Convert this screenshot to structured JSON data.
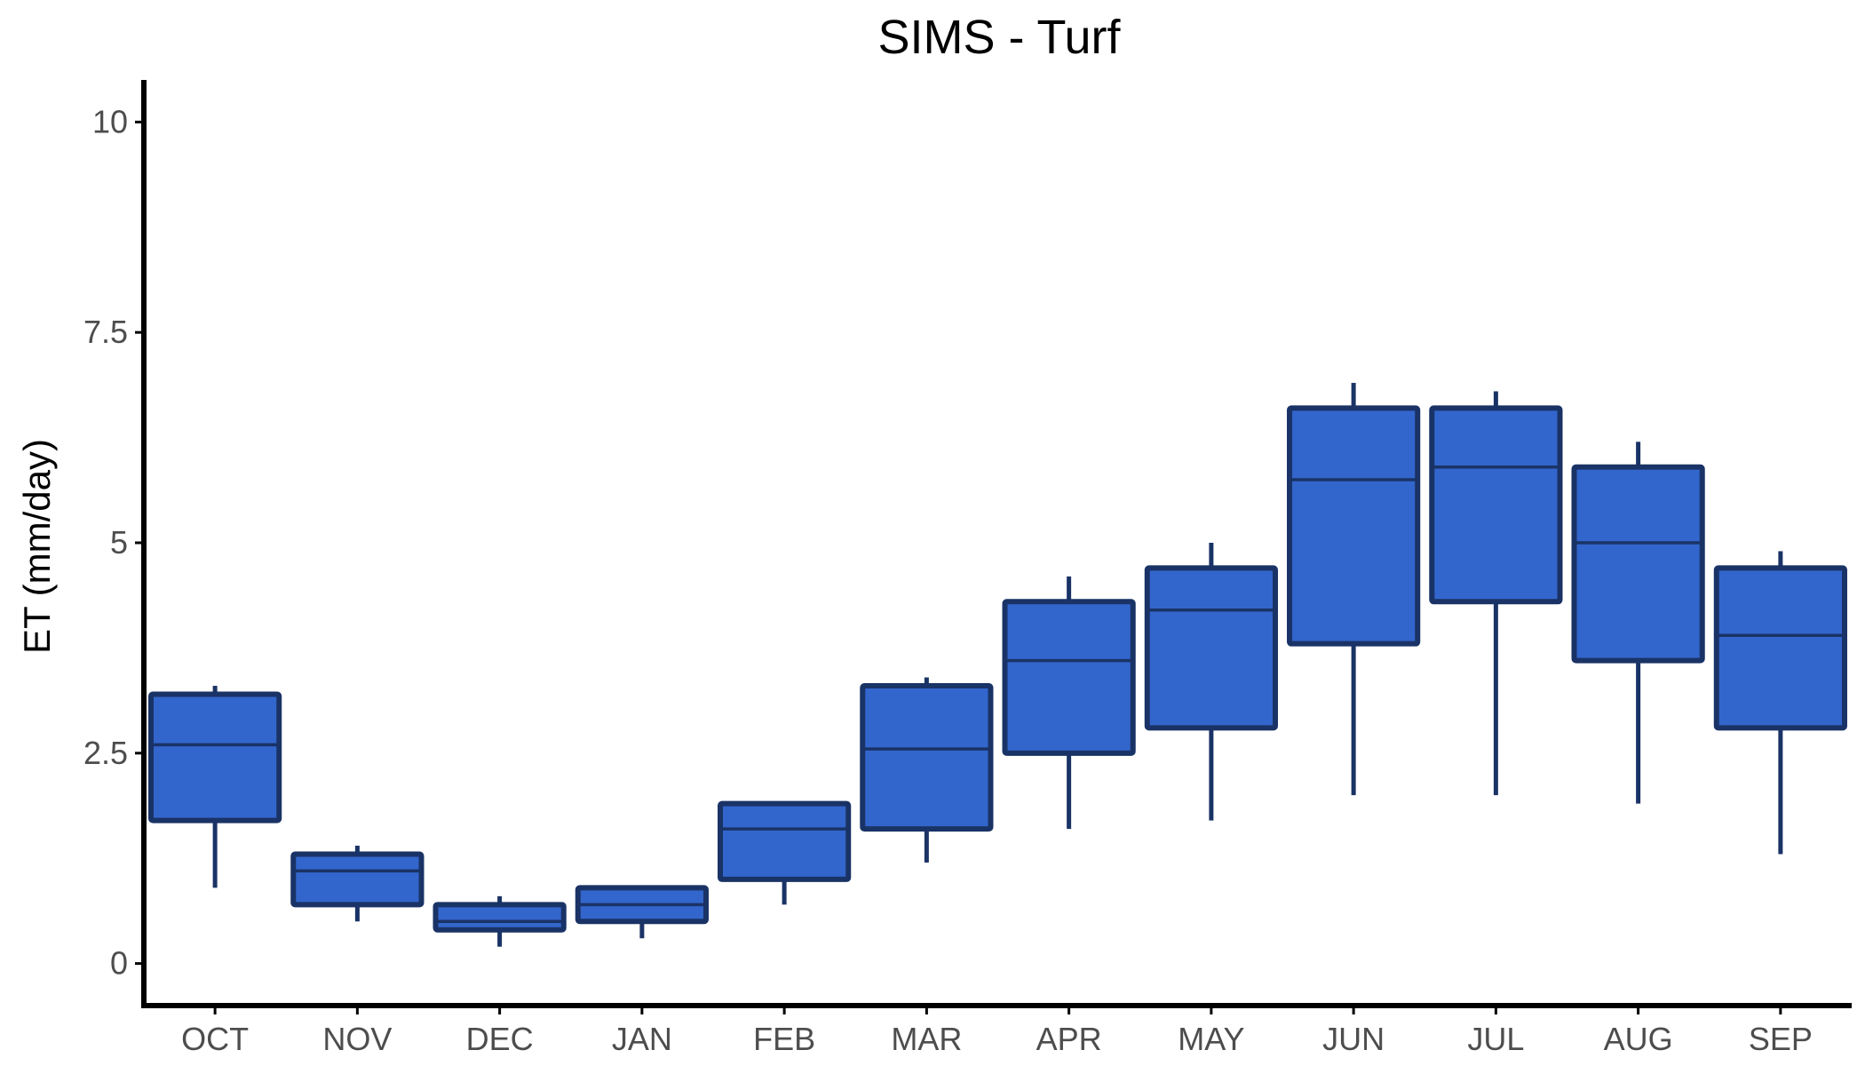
{
  "chart_data": {
    "type": "box",
    "title": "SIMS - Turf",
    "ylabel": "ET (mm/day)",
    "xlabel": "",
    "ylim": [
      -0.5,
      10.5
    ],
    "yticks": [
      0,
      2.5,
      5,
      7.5,
      10
    ],
    "ytick_labels": [
      "0",
      "2.5",
      "5",
      "7.5",
      "10"
    ],
    "categories": [
      "OCT",
      "NOV",
      "DEC",
      "JAN",
      "FEB",
      "MAR",
      "APR",
      "MAY",
      "JUN",
      "JUL",
      "AUG",
      "SEP"
    ],
    "boxes": [
      {
        "min": 0.9,
        "q1": 1.7,
        "median": 2.6,
        "q3": 3.2,
        "max": 3.3
      },
      {
        "min": 0.5,
        "q1": 0.7,
        "median": 1.1,
        "q3": 1.3,
        "max": 1.4
      },
      {
        "min": 0.2,
        "q1": 0.4,
        "median": 0.5,
        "q3": 0.7,
        "max": 0.8
      },
      {
        "min": 0.3,
        "q1": 0.5,
        "median": 0.7,
        "q3": 0.9,
        "max": 0.9
      },
      {
        "min": 0.7,
        "q1": 1.0,
        "median": 1.6,
        "q3": 1.9,
        "max": 1.9
      },
      {
        "min": 1.2,
        "q1": 1.6,
        "median": 2.55,
        "q3": 3.3,
        "max": 3.4
      },
      {
        "min": 1.6,
        "q1": 2.5,
        "median": 3.6,
        "q3": 4.3,
        "max": 4.6
      },
      {
        "min": 1.7,
        "q1": 2.8,
        "median": 4.2,
        "q3": 4.7,
        "max": 5.0
      },
      {
        "min": 2.0,
        "q1": 3.8,
        "median": 5.75,
        "q3": 6.6,
        "max": 6.9
      },
      {
        "min": 2.0,
        "q1": 4.3,
        "median": 5.9,
        "q3": 6.6,
        "max": 6.8
      },
      {
        "min": 1.9,
        "q1": 3.6,
        "median": 5.0,
        "q3": 5.9,
        "max": 6.2
      },
      {
        "min": 1.3,
        "q1": 2.8,
        "median": 3.9,
        "q3": 4.7,
        "max": 4.9
      }
    ],
    "colors": {
      "fill": "#3366cc",
      "stroke": "#1a3366",
      "axis": "#000000",
      "tick_label": "#4d4d4d"
    },
    "grid": false,
    "legend": "none"
  }
}
